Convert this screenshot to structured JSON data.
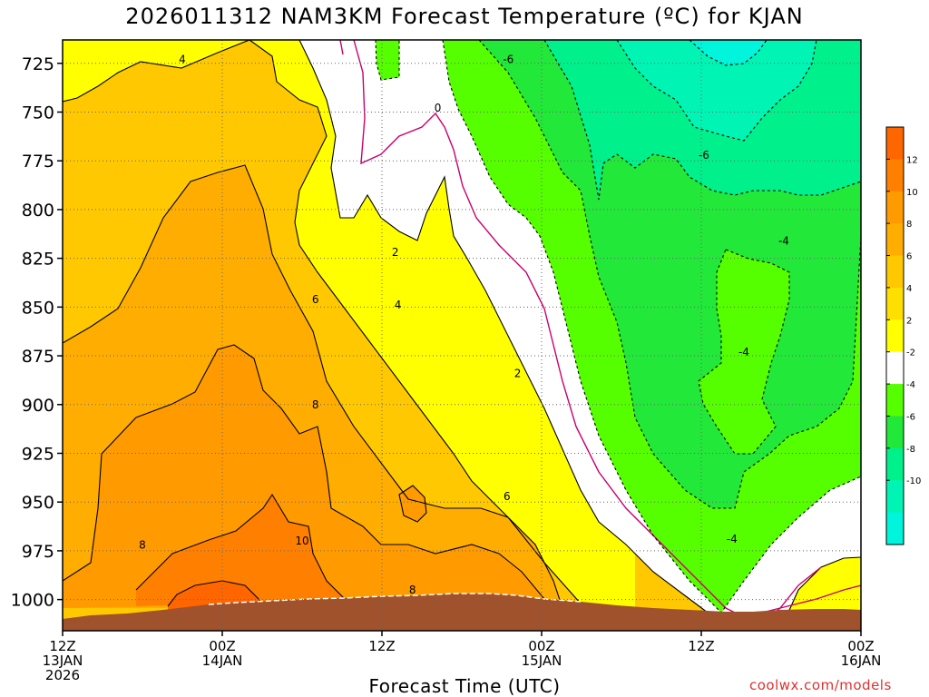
{
  "chart_data": {
    "type": "heatmap",
    "title": "2026011312 NAM3KM Forecast Temperature (ºC) for KJAN",
    "xlabel": "Forecast Time (UTC)",
    "ylabel": "",
    "x_ticks": [
      {
        "hour": 0,
        "lines": [
          "12Z",
          "13JAN",
          "2026"
        ]
      },
      {
        "hour": 12,
        "lines": [
          "00Z",
          "14JAN"
        ]
      },
      {
        "hour": 24,
        "lines": [
          "12Z"
        ]
      },
      {
        "hour": 36,
        "lines": [
          "00Z",
          "15JAN"
        ]
      },
      {
        "hour": 48,
        "lines": [
          "12Z"
        ]
      },
      {
        "hour": 60,
        "lines": [
          "00Z",
          "16JAN"
        ]
      }
    ],
    "xlim": [
      0,
      60
    ],
    "y_ticks": [
      725,
      750,
      775,
      800,
      825,
      850,
      875,
      900,
      925,
      950,
      975,
      1000
    ],
    "ylim": [
      1016,
      713
    ],
    "colorbar": {
      "ticks": [
        12,
        10,
        8,
        6,
        4,
        2,
        -2,
        -4,
        -6,
        -8,
        -10
      ],
      "bins": [
        {
          "from": 12,
          "to": 14,
          "color": "#ff6600"
        },
        {
          "from": 10,
          "to": 12,
          "color": "#ff8000"
        },
        {
          "from": 8,
          "to": 10,
          "color": "#ff9a00"
        },
        {
          "from": 6,
          "to": 8,
          "color": "#ffad00"
        },
        {
          "from": 4,
          "to": 6,
          "color": "#ffc800"
        },
        {
          "from": 2,
          "to": 4,
          "color": "#ffdf00"
        },
        {
          "from": 0,
          "to": 2,
          "color": "#ffff00"
        },
        {
          "from": -2,
          "to": 0,
          "color": "#ffffff"
        },
        {
          "from": -4,
          "to": -2,
          "color": "#55ff00"
        },
        {
          "from": -6,
          "to": -4,
          "color": "#22e83a"
        },
        {
          "from": -8,
          "to": -6,
          "color": "#00f08c"
        },
        {
          "from": -10,
          "to": -8,
          "color": "#00f5b4"
        },
        {
          "from": -12,
          "to": -10,
          "color": "#00f5dc"
        }
      ]
    },
    "contour_labels": [
      {
        "text": "4",
        "hour": 9.0,
        "p": 723
      },
      {
        "text": "-6",
        "hour": 33.5,
        "p": 723
      },
      {
        "text": "0",
        "hour": 28.2,
        "p": 748
      },
      {
        "text": "-6",
        "hour": 48.2,
        "p": 772
      },
      {
        "text": "2",
        "hour": 25.0,
        "p": 822
      },
      {
        "text": "-4",
        "hour": 54.2,
        "p": 816
      },
      {
        "text": "6",
        "hour": 19.0,
        "p": 846
      },
      {
        "text": "4",
        "hour": 25.2,
        "p": 849
      },
      {
        "text": "-4",
        "hour": 51.2,
        "p": 873
      },
      {
        "text": "2",
        "hour": 34.2,
        "p": 884
      },
      {
        "text": "8",
        "hour": 19.0,
        "p": 900
      },
      {
        "text": "6",
        "hour": 33.4,
        "p": 947
      },
      {
        "text": "8",
        "hour": 6.0,
        "p": 972
      },
      {
        "text": "10",
        "hour": 18.0,
        "p": 970
      },
      {
        "text": "-4",
        "hour": 50.3,
        "p": 969
      },
      {
        "text": "8",
        "hour": 26.3,
        "p": 995
      }
    ],
    "grid": true
  },
  "credit": "coolwx.com/models"
}
